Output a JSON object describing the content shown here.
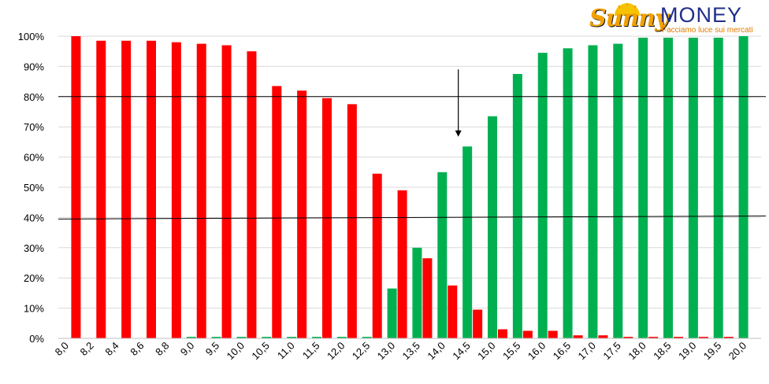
{
  "brand": {
    "name_part1": "Sunny",
    "name_part2": "MONEY",
    "tagline": "Facciamo luce sui mercati",
    "colors": {
      "sunny": "#f2a100",
      "money": "#1f2f8a",
      "tagline": "#e07b00"
    }
  },
  "chart_data": {
    "type": "bar",
    "title": "",
    "xlabel": "",
    "ylabel": "",
    "ylim": [
      0,
      100
    ],
    "yticks": [
      "0%",
      "10%",
      "20%",
      "30%",
      "40%",
      "50%",
      "60%",
      "70%",
      "80%",
      "90%",
      "100%"
    ],
    "grid": true,
    "categories": [
      "8,0",
      "8,2",
      "8,4",
      "8,6",
      "8,8",
      "9,0",
      "9,5",
      "10,0",
      "10,5",
      "11,0",
      "11,5",
      "12,0",
      "12,5",
      "13,0",
      "13,5",
      "14,0",
      "14,5",
      "15,0",
      "15,5",
      "16,0",
      "16,5",
      "17,0",
      "17,5",
      "18,0",
      "18,5",
      "19,0",
      "19,5",
      "20,0"
    ],
    "series": [
      {
        "color": "#00b050",
        "values": [
          0,
          0,
          0,
          0,
          0,
          0.5,
          0.5,
          0.5,
          0.5,
          0.5,
          0.5,
          0.5,
          0.5,
          16.5,
          30,
          55,
          63.5,
          73.5,
          87.5,
          94.5,
          96,
          97,
          97.5,
          99.5,
          99.5,
          99.5,
          99.5,
          100
        ]
      },
      {
        "color": "#ff0000",
        "values": [
          100,
          98.5,
          98.5,
          98.5,
          98,
          97.5,
          97,
          95,
          83.5,
          82,
          79.5,
          77.5,
          54.5,
          49,
          26.5,
          17.5,
          9.5,
          3,
          2.5,
          2.5,
          1,
          1,
          0.5,
          0.5,
          0.5,
          0.5,
          0.5,
          0
        ]
      }
    ],
    "reference_lines": [
      {
        "kind": "horizontal",
        "y": 80,
        "color": "#000000"
      },
      {
        "kind": "sloped",
        "from_y": 39.5,
        "to_y": 40.5,
        "color": "#000000"
      }
    ],
    "annotation_arrow": {
      "category": "14,5",
      "from_y": 89,
      "to_y": 67,
      "color": "#000000"
    }
  }
}
